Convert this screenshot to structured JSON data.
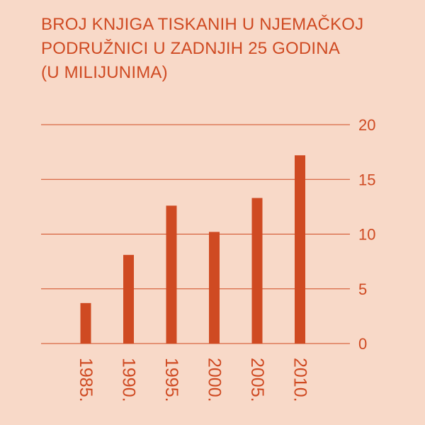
{
  "title_lines": [
    "BROJ KNJIGA TISKANIH U NJEMAČKOJ",
    "PODRUŽNICI U ZADNJIH 25 GODINA",
    "(U MILIJUNIMA)"
  ],
  "colors": {
    "background": "#f8d9c8",
    "accent": "#cf4a22"
  },
  "chart_data": {
    "type": "bar",
    "title": "BROJ KNJIGA TISKANIH U NJEMAČKOJ PODRUŽNICI U ZADNJIH 25 GODINA (U MILIJUNIMA)",
    "categories": [
      "1985.",
      "1990.",
      "1995.",
      "2000.",
      "2005.",
      "2010."
    ],
    "values": [
      3.7,
      8.1,
      12.6,
      10.2,
      13.3,
      17.2
    ],
    "ylim": [
      0,
      20
    ],
    "yticks": [
      0,
      5,
      10,
      15,
      20
    ],
    "y_axis_position": "right",
    "grid": true,
    "xlabel": "",
    "ylabel": ""
  }
}
